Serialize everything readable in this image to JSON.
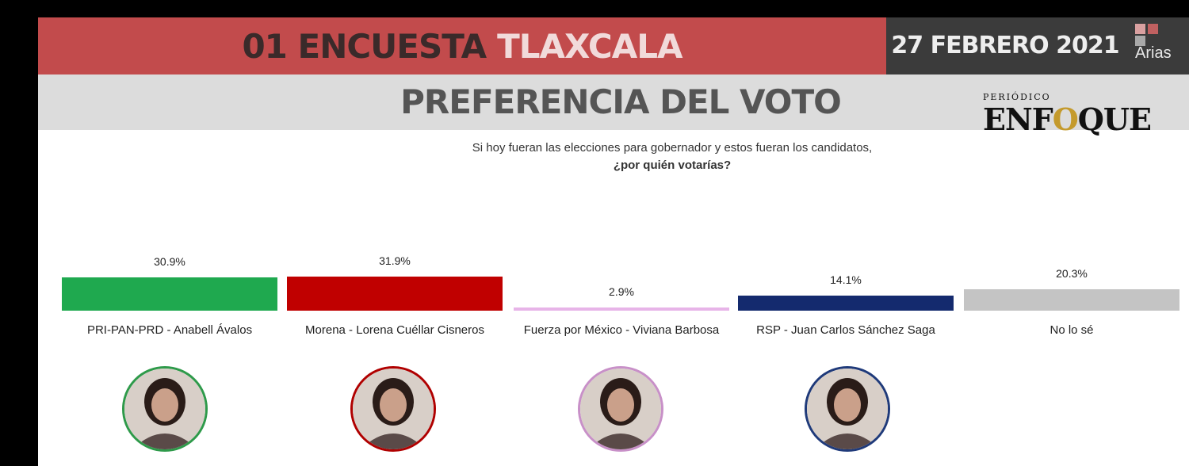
{
  "header": {
    "title_main": "01 ENCUESTA",
    "title_place": "TLAXCALA",
    "date": "27 FEBRERO 2021",
    "logo_text": "Arias",
    "subtitle": "PREFERENCIA DEL VOTO"
  },
  "watermark": {
    "small": "PERIÓDICO",
    "word_a": "ENF",
    "word_o": "O",
    "word_b": "QUE"
  },
  "question": {
    "line1": "Si hoy fueran las elecciones para gobernador y estos fueran los candidatos,",
    "line2": "¿por quién votarías?"
  },
  "chart_data": {
    "type": "bar",
    "categories": [
      "PRI-PAN-PRD - Anabell Ávalos",
      "Morena - Lorena Cuéllar Cisneros",
      "Fuerza por México - Viviana Barbosa",
      "RSP - Juan Carlos Sánchez Saga",
      "No lo sé"
    ],
    "values": [
      30.9,
      31.9,
      2.9,
      14.1,
      20.3
    ],
    "value_labels": [
      "30.9%",
      "31.9%",
      "2.9%",
      "14.1%",
      "20.3%"
    ],
    "colors": [
      "#1fa94f",
      "#c00000",
      "#e7b4e8",
      "#142a6e",
      "#c4c4c4"
    ],
    "ylim": [
      0,
      31.9
    ]
  },
  "avatars": [
    {
      "border": "#2e9a4a"
    },
    {
      "border": "#b00000"
    },
    {
      "border": "#c890c8"
    },
    {
      "border": "#1f3a7a"
    }
  ]
}
